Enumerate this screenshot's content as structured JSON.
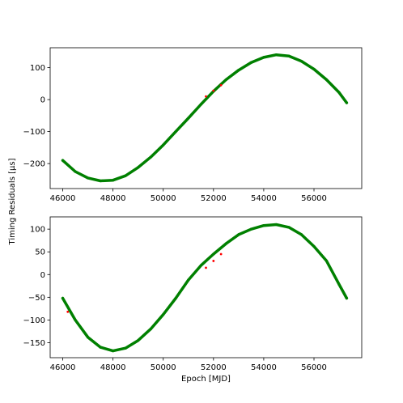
{
  "chart_data": [
    {
      "type": "scatter",
      "panel": "top",
      "xlabel": "",
      "ylabel": "",
      "xlim": [
        45500,
        57900
      ],
      "ylim": [
        -278,
        162
      ],
      "xticks": [
        46000,
        48000,
        50000,
        52000,
        54000,
        56000
      ],
      "yticks": [
        -200,
        -100,
        0,
        100
      ],
      "grid": false,
      "legend": "none",
      "series": [
        {
          "color": "#008000",
          "x": [
            46000,
            46500,
            47000,
            47500,
            48000,
            48500,
            49000,
            49500,
            50000,
            50500,
            51000,
            51500,
            52000,
            52500,
            53000,
            53500,
            54000,
            54500,
            55000,
            55500,
            56000,
            56500,
            57000,
            57300
          ],
          "y": [
            -190,
            -225,
            -245,
            -254,
            -252,
            -238,
            -212,
            -180,
            -142,
            -100,
            -58,
            -15,
            26,
            62,
            92,
            116,
            132,
            140,
            136,
            120,
            95,
            62,
            22,
            -10
          ]
        },
        {
          "color": "#ff0000",
          "x": [
            51700,
            52000,
            52300
          ],
          "y": [
            10,
            28,
            45
          ]
        }
      ]
    },
    {
      "type": "scatter",
      "panel": "bottom",
      "xlabel": "Epoch [MJD]",
      "ylabel": "",
      "xlim": [
        45500,
        57900
      ],
      "ylim": [
        -183,
        127
      ],
      "xticks": [
        46000,
        48000,
        50000,
        52000,
        54000,
        56000
      ],
      "yticks": [
        -150,
        -100,
        -50,
        0,
        50,
        100
      ],
      "grid": false,
      "legend": "none",
      "series": [
        {
          "color": "#008000",
          "x": [
            46000,
            46500,
            47000,
            47500,
            48000,
            48500,
            49000,
            49500,
            50000,
            50500,
            51000,
            51500,
            52000,
            52500,
            53000,
            53500,
            54000,
            54500,
            55000,
            55500,
            56000,
            56500,
            57000,
            57300
          ],
          "y": [
            -52,
            -100,
            -138,
            -160,
            -168,
            -162,
            -145,
            -120,
            -88,
            -52,
            -12,
            20,
            45,
            68,
            88,
            100,
            108,
            110,
            104,
            88,
            62,
            30,
            -22,
            -52
          ]
        },
        {
          "color": "#ff0000",
          "x": [
            46200,
            51700,
            52000,
            52300
          ],
          "y": [
            -82,
            15,
            30,
            45
          ]
        }
      ]
    }
  ],
  "shared": {
    "ylabel": "Timing Residuals [μs]"
  }
}
